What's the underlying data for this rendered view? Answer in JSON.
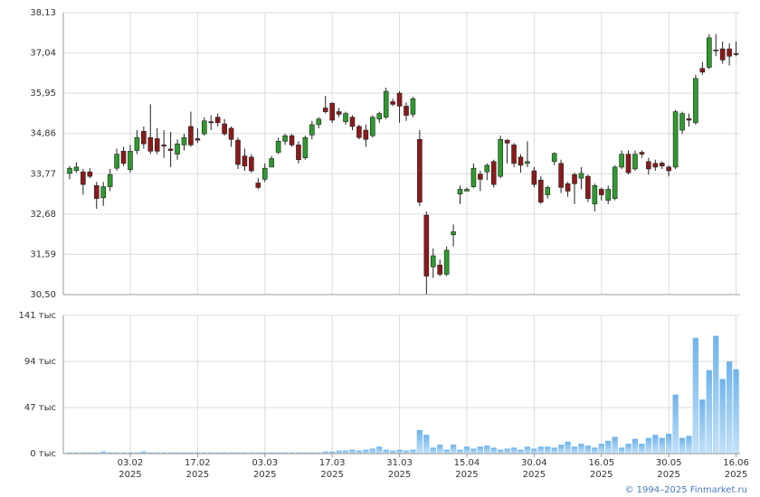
{
  "chart_data": [
    {
      "type": "candlestick",
      "ylim": [
        30.5,
        38.13
      ],
      "yticks": [
        {
          "value": 30.5,
          "label": "30,50"
        },
        {
          "value": 31.59,
          "label": "31,59"
        },
        {
          "value": 32.68,
          "label": "32,68"
        },
        {
          "value": 33.77,
          "label": "33,77"
        },
        {
          "value": 34.86,
          "label": "34,86"
        },
        {
          "value": 35.95,
          "label": "35,95"
        },
        {
          "value": 37.04,
          "label": "37,04"
        },
        {
          "value": 38.13,
          "label": "38,13"
        }
      ],
      "grid": true,
      "up_color": "#2f9a2f",
      "down_color": "#8b1a1a",
      "open": [
        33.78,
        33.86,
        33.82,
        33.82,
        33.45,
        33.12,
        33.42,
        33.92,
        34.38,
        33.88,
        34.4,
        34.92,
        34.75,
        34.72,
        34.55,
        34.44,
        34.3,
        34.55,
        35.05,
        34.72,
        34.85,
        35.18,
        35.3,
        35.12,
        35.0,
        34.68,
        34.25,
        34.22,
        33.52,
        33.62,
        33.95,
        34.35,
        34.65,
        34.8,
        34.55,
        34.2,
        34.82,
        35.1,
        35.55,
        35.68,
        35.45,
        35.18,
        35.3,
        35.05,
        34.95,
        34.8,
        35.25,
        35.3,
        35.72,
        35.95,
        35.6,
        35.38,
        34.7,
        32.65,
        31.25,
        31.3,
        31.05,
        32.12,
        33.22,
        33.3,
        33.42,
        33.76,
        33.82,
        34.1,
        33.7,
        34.68,
        34.55,
        34.22,
        34.05,
        33.85,
        33.6,
        33.2,
        34.1,
        34.05,
        33.5,
        33.75,
        33.65,
        33.7,
        32.95,
        33.35,
        33.05,
        33.1,
        33.95,
        34.3,
        33.9,
        34.35,
        34.1,
        34.05,
        34.06,
        33.95,
        33.95,
        34.95,
        35.26,
        35.15,
        36.62,
        36.65,
        37.12,
        37.15,
        37.15,
        37.02
      ],
      "high": [
        33.98,
        34.08,
        33.9,
        33.92,
        33.55,
        33.55,
        33.9,
        34.45,
        34.5,
        34.55,
        34.95,
        35.05,
        35.65,
        35.0,
        34.95,
        34.9,
        34.7,
        34.85,
        35.45,
        35.0,
        35.3,
        35.35,
        35.4,
        35.25,
        35.05,
        34.75,
        34.45,
        34.3,
        33.65,
        34.05,
        34.25,
        34.75,
        34.85,
        34.85,
        34.65,
        34.8,
        35.2,
        35.3,
        35.88,
        35.7,
        35.55,
        35.45,
        35.35,
        35.1,
        35.1,
        35.35,
        35.45,
        36.1,
        35.8,
        36.0,
        35.7,
        35.85,
        34.95,
        32.75,
        31.75,
        31.45,
        31.8,
        32.4,
        33.45,
        33.4,
        34.05,
        33.85,
        34.05,
        34.15,
        34.8,
        34.7,
        34.6,
        34.3,
        34.65,
        33.95,
        33.7,
        33.45,
        34.35,
        34.15,
        33.55,
        33.8,
        33.95,
        33.75,
        33.5,
        33.4,
        33.45,
        34.0,
        34.4,
        34.4,
        34.4,
        34.4,
        34.2,
        34.15,
        34.1,
        34.0,
        35.5,
        35.45,
        35.4,
        36.45,
        36.8,
        37.55,
        37.55,
        37.35,
        37.3,
        37.35
      ],
      "low": [
        33.62,
        33.8,
        33.2,
        33.65,
        32.82,
        32.9,
        33.3,
        33.85,
        33.98,
        33.8,
        34.3,
        34.45,
        34.3,
        34.3,
        34.2,
        33.95,
        34.15,
        34.4,
        34.5,
        34.6,
        34.8,
        34.95,
        35.05,
        34.8,
        34.5,
        33.9,
        33.85,
        33.8,
        33.35,
        33.55,
        33.95,
        34.3,
        34.55,
        34.5,
        34.05,
        34.15,
        34.7,
        35.0,
        35.4,
        35.15,
        35.3,
        35.1,
        34.95,
        34.7,
        34.5,
        34.75,
        35.15,
        35.25,
        35.6,
        35.15,
        35.2,
        35.3,
        32.9,
        30.5,
        30.95,
        31.0,
        31.0,
        31.8,
        32.95,
        33.3,
        33.38,
        33.3,
        33.6,
        33.4,
        33.65,
        34.05,
        33.95,
        33.8,
        33.95,
        33.4,
        32.95,
        33.1,
        34.0,
        33.25,
        33.15,
        32.95,
        33.35,
        33.0,
        32.75,
        33.05,
        32.95,
        33.05,
        33.9,
        33.75,
        33.85,
        34.2,
        33.75,
        33.85,
        33.9,
        33.7,
        33.9,
        34.85,
        35.05,
        35.1,
        36.45,
        36.6,
        36.95,
        36.75,
        36.7,
        36.95
      ],
      "close": [
        33.92,
        33.95,
        33.48,
        33.7,
        33.1,
        33.42,
        33.75,
        34.3,
        34.05,
        34.38,
        34.75,
        34.58,
        34.38,
        34.38,
        34.52,
        34.4,
        34.58,
        34.75,
        34.55,
        34.68,
        35.2,
        35.15,
        35.15,
        34.85,
        34.7,
        34.02,
        33.98,
        33.85,
        33.4,
        33.92,
        34.18,
        34.65,
        34.8,
        34.55,
        34.15,
        34.75,
        35.1,
        35.25,
        35.45,
        35.22,
        35.38,
        35.4,
        35.05,
        34.75,
        34.7,
        35.3,
        35.4,
        36.0,
        35.65,
        35.6,
        35.35,
        35.8,
        33.0,
        31.0,
        31.55,
        31.05,
        31.7,
        32.2,
        33.35,
        33.35,
        33.92,
        33.62,
        34.0,
        33.48,
        34.7,
        34.6,
        34.05,
        34.0,
        34.1,
        33.48,
        33.0,
        33.4,
        34.32,
        33.4,
        33.3,
        33.5,
        33.78,
        33.1,
        33.45,
        33.2,
        33.35,
        33.95,
        34.3,
        33.8,
        34.3,
        34.3,
        33.9,
        33.95,
        33.98,
        33.85,
        35.45,
        35.4,
        35.22,
        36.35,
        36.52,
        37.45,
        37.1,
        36.85,
        36.95,
        37.0
      ]
    },
    {
      "type": "bar",
      "color": "#7dbcee",
      "ylim": [
        0,
        141
      ],
      "yticks": [
        {
          "value": 0,
          "label": "0 тыс"
        },
        {
          "value": 47,
          "label": "47 тыс"
        },
        {
          "value": 94,
          "label": "94 тыс"
        },
        {
          "value": 141,
          "label": "141 тыс"
        }
      ],
      "grid": true,
      "categories": [
        null,
        null,
        null,
        null,
        null,
        null,
        null,
        null,
        null,
        "03.02",
        null,
        null,
        null,
        null,
        null,
        null,
        null,
        null,
        null,
        "17.02",
        null,
        null,
        null,
        null,
        null,
        null,
        null,
        null,
        null,
        "03.03",
        null,
        null,
        null,
        null,
        null,
        null,
        null,
        null,
        null,
        "17.03",
        null,
        null,
        null,
        null,
        null,
        null,
        null,
        null,
        null,
        "31.03",
        null,
        null,
        null,
        null,
        null,
        null,
        null,
        null,
        null,
        "15.04",
        null,
        null,
        null,
        null,
        null,
        null,
        null,
        null,
        null,
        "30.04",
        null,
        null,
        null,
        null,
        null,
        null,
        null,
        null,
        null,
        "16.05",
        null,
        null,
        null,
        null,
        null,
        null,
        null,
        null,
        null,
        "30.05",
        null,
        null,
        null,
        null,
        null,
        null,
        null,
        null,
        null,
        "16.06"
      ],
      "category_years": [
        null,
        null,
        null,
        null,
        null,
        null,
        null,
        null,
        null,
        "2025",
        null,
        null,
        null,
        null,
        null,
        null,
        null,
        null,
        null,
        "2025",
        null,
        null,
        null,
        null,
        null,
        null,
        null,
        null,
        null,
        "2025",
        null,
        null,
        null,
        null,
        null,
        null,
        null,
        null,
        null,
        "2025",
        null,
        null,
        null,
        null,
        null,
        null,
        null,
        null,
        null,
        "2025",
        null,
        null,
        null,
        null,
        null,
        null,
        null,
        null,
        null,
        "2025",
        null,
        null,
        null,
        null,
        null,
        null,
        null,
        null,
        null,
        "2025",
        null,
        null,
        null,
        null,
        null,
        null,
        null,
        null,
        null,
        "2025",
        null,
        null,
        null,
        null,
        null,
        null,
        null,
        null,
        null,
        "2025",
        null,
        null,
        null,
        null,
        null,
        null,
        null,
        null,
        null,
        "2025"
      ],
      "values": [
        1,
        1,
        1,
        1,
        1,
        2,
        1,
        1,
        1,
        1,
        1,
        2,
        1,
        1,
        1,
        1,
        1,
        1,
        1,
        1,
        1,
        1,
        1,
        1,
        1,
        1,
        1,
        1,
        1,
        1,
        1,
        1,
        1,
        1,
        1,
        1,
        1,
        1,
        2,
        2,
        3,
        3,
        4,
        3,
        4,
        5,
        7,
        4,
        3,
        4,
        3,
        4,
        24,
        19,
        6,
        9,
        4,
        9,
        4,
        7,
        5,
        7,
        8,
        6,
        4,
        5,
        6,
        4,
        7,
        5,
        7,
        7,
        6,
        9,
        12,
        7,
        10,
        8,
        6,
        10,
        13,
        17,
        6,
        10,
        15,
        10,
        16,
        19,
        16,
        20,
        60,
        16,
        18,
        118,
        55,
        85,
        120,
        76,
        94,
        86
      ]
    }
  ],
  "copyright": "© 1994–2025 Finmarket.ru"
}
